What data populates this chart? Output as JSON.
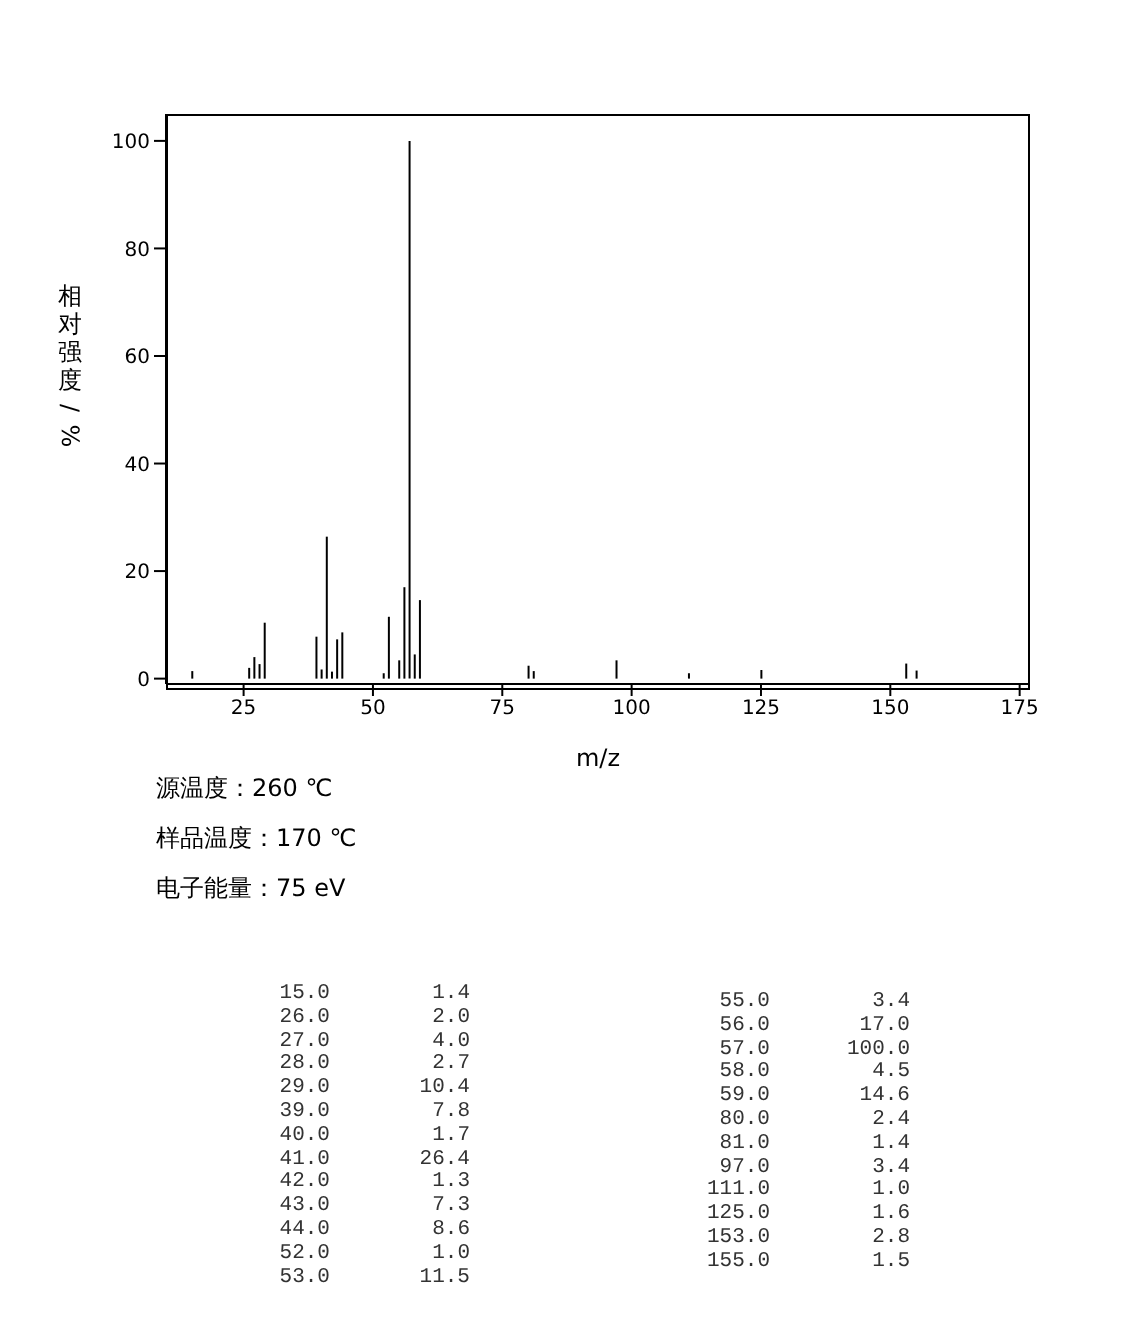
{
  "chart_data": {
    "type": "bar",
    "ylabel": "相对强度/%",
    "xlabel": "m/z",
    "x": [
      15,
      26,
      27,
      28,
      29,
      39,
      40,
      41,
      42,
      43,
      44,
      52,
      53,
      55,
      56,
      57,
      58,
      59,
      80,
      81,
      97,
      111,
      125,
      153,
      155
    ],
    "values": [
      1.4,
      2.0,
      4.0,
      2.7,
      10.4,
      7.8,
      1.7,
      26.4,
      1.3,
      7.3,
      8.6,
      1.0,
      11.5,
      3.4,
      17.0,
      100.0,
      4.5,
      14.6,
      2.4,
      1.4,
      3.4,
      1.0,
      1.6,
      2.8,
      1.5
    ],
    "color": "#000000",
    "xlim": [
      10,
      177
    ],
    "xticks": [
      25,
      50,
      75,
      100,
      125,
      150,
      175
    ],
    "ylim": [
      -1,
      105
    ],
    "yticks": [
      0,
      20,
      40,
      60,
      80,
      100
    ],
    "legend": false,
    "annotations": [
      "源温度：260 ℃",
      "样品温度：170 ℃",
      "电子能量：75 eV",
      "15.0",
      "1.4",
      "26.0",
      "2.0",
      "27.0",
      "4.0",
      "28.0",
      "2.7",
      "29.0",
      "10.4",
      "39.0",
      "7.8",
      "40.0",
      "1.7",
      "41.0",
      "26.4",
      "42.0",
      "1.3",
      "43.0",
      "7.3",
      "44.0",
      "8.6",
      "52.0",
      "1.0",
      "53.0",
      "11.5",
      "55.0",
      "3.4",
      "56.0",
      "17.0",
      "57.0",
      "100.0",
      "58.0",
      "4.5",
      "59.0",
      "14.6",
      "80.0",
      "2.4",
      "81.0",
      "1.4",
      "97.0",
      "3.4",
      "111.0",
      "1.0",
      "125.0",
      "1.6",
      "153.0",
      "2.8",
      "155.0",
      "1.5"
    ]
  }
}
